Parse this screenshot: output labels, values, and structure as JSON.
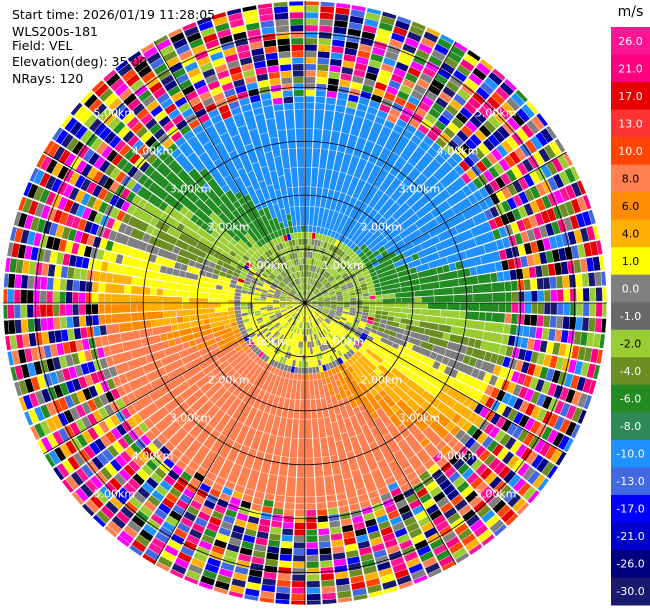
{
  "header": {
    "start_time": "Start time: 2026/01/19 11:28:05",
    "instrument": "WLS200s-181",
    "field": "Field: VEL",
    "elevation": "Elevation(deg): 35.00",
    "nrays": "NRays: 120"
  },
  "chart_data": {
    "type": "heatmap",
    "projection": "polar-ppi",
    "field": "VEL",
    "units": "m/s",
    "nrays": 120,
    "elevation_deg": 35.0,
    "max_range_km": 5.6,
    "range_rings_km": [
      1.0,
      2.0,
      3.0,
      4.0,
      5.0
    ],
    "ring_labels": [
      "1.00km",
      "2.00km",
      "3.00km",
      "4.00km",
      "5.00km"
    ],
    "radial_lines_deg": [
      0,
      30,
      60,
      90,
      120,
      150,
      180,
      210,
      240,
      270,
      300,
      330
    ],
    "colorbar": {
      "unit_label": "m/s",
      "ticks": [
        "26.0",
        "21.0",
        "17.0",
        "13.0",
        "10.0",
        "8.0",
        "6.0",
        "4.0",
        "1.0",
        "0.0",
        "-1.0",
        "-2.0",
        "-4.0",
        "-6.0",
        "-8.0",
        "-10.0",
        "-13.0",
        "-17.0",
        "-21.0",
        "-26.0",
        "-30.0"
      ],
      "colors": [
        "#ff1493",
        "#ff007f",
        "#e60000",
        "#ff3333",
        "#ff4500",
        "#ff7f50",
        "#ff8c00",
        "#ffb000",
        "#ffff00",
        "#7f7f7f",
        "#696969",
        "#9acd32",
        "#6b8e23",
        "#228b22",
        "#2e8b57",
        "#1e90ff",
        "#4169e1",
        "#0000ff",
        "#0000cd",
        "#000080",
        "#191970"
      ]
    },
    "pattern_note_regions": [
      {
        "from_km": 0.0,
        "to_km": 1.2,
        "dominant": [
          "#9acd32",
          "#7f7f7f",
          "#ffff00"
        ]
      },
      {
        "from_km": 1.2,
        "to_km": 3.6,
        "dominant": [
          "#228b22",
          "#9acd32",
          "#ffff00",
          "#ffb000",
          "#ff7f50"
        ]
      },
      {
        "from_km": 3.6,
        "to_km": 5.6,
        "dominant": [
          "noise"
        ]
      }
    ]
  }
}
